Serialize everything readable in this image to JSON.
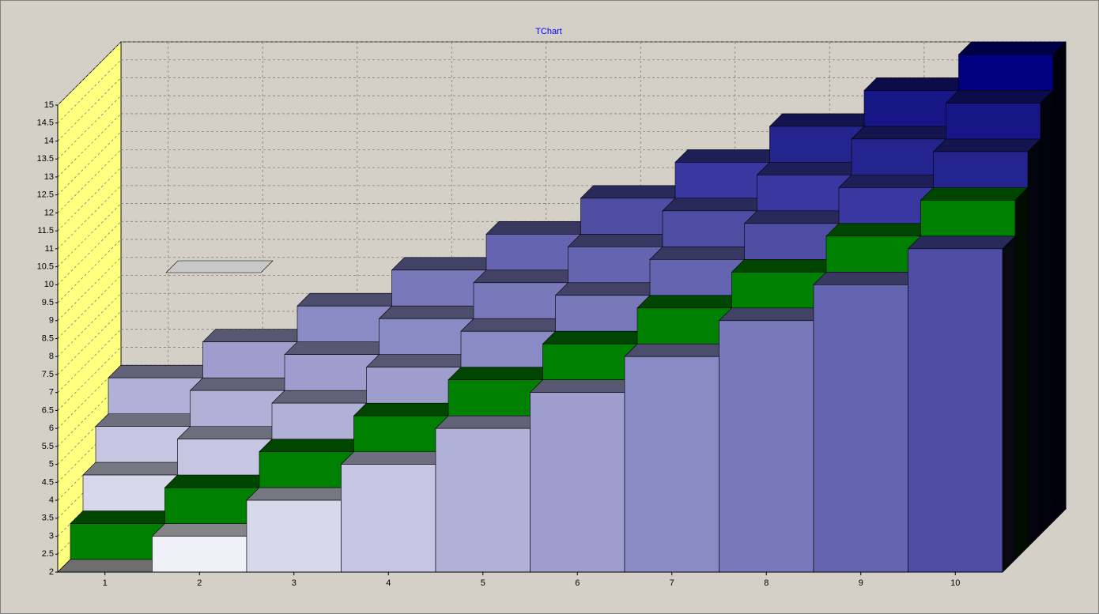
{
  "chart_data": {
    "type": "bar3d",
    "title": "TChart",
    "categories": [
      "1",
      "2",
      "3",
      "4",
      "5",
      "6",
      "7",
      "8",
      "9",
      "10"
    ],
    "series": [
      {
        "values": [
          2,
          3,
          4,
          5,
          6,
          7,
          8,
          9,
          10,
          11
        ],
        "colors": [
          "#c8c8c8",
          "#f0f0f8",
          "#d8d8ec",
          "#c6c6e3",
          "#b1b1d8",
          "#9e9ece",
          "#8a8ac4",
          "#7878ba",
          "#6464b0",
          "#4d4da3"
        ]
      },
      {
        "values": [
          3,
          4,
          5,
          6,
          7,
          8,
          9,
          10,
          11,
          12
        ],
        "color": "#008000"
      },
      {
        "values": [
          4,
          5,
          6,
          7,
          8,
          9,
          10,
          11,
          12,
          13
        ],
        "colors": [
          "#d8d8ec",
          "#c6c6e3",
          "#b1b1d8",
          "#9e9ece",
          "#8a8ac4",
          "#7878ba",
          "#6464b0",
          "#4d4da3",
          "#3838a0",
          "#24248f"
        ]
      },
      {
        "values": [
          5,
          6,
          7,
          8,
          9,
          10,
          11,
          12,
          13,
          14
        ],
        "colors": [
          "#c6c6e3",
          "#b1b1d8",
          "#9e9ece",
          "#8a8ac4",
          "#7878ba",
          "#6464b0",
          "#4d4da3",
          "#3838a0",
          "#24248f",
          "#161686"
        ]
      },
      {
        "values": [
          6,
          7,
          8,
          9,
          10,
          11,
          12,
          13,
          14,
          15
        ],
        "colors": [
          "#b1b1d8",
          "#9e9ece",
          "#8a8ac4",
          "#7878ba",
          "#6464b0",
          "#4d4da3",
          "#3838a0",
          "#24248f",
          "#161686",
          "#000080"
        ]
      }
    ],
    "ylim": [
      2,
      15
    ],
    "yticks": [
      2,
      2.5,
      3,
      3.5,
      4,
      4.5,
      5,
      5.5,
      6,
      6.5,
      7,
      7.5,
      8,
      8.5,
      9,
      9.5,
      10,
      10.5,
      11,
      11.5,
      12,
      12.5,
      13,
      13.5,
      14,
      14.5,
      15
    ],
    "grid": true,
    "left_wall_color": "#ffff80"
  }
}
